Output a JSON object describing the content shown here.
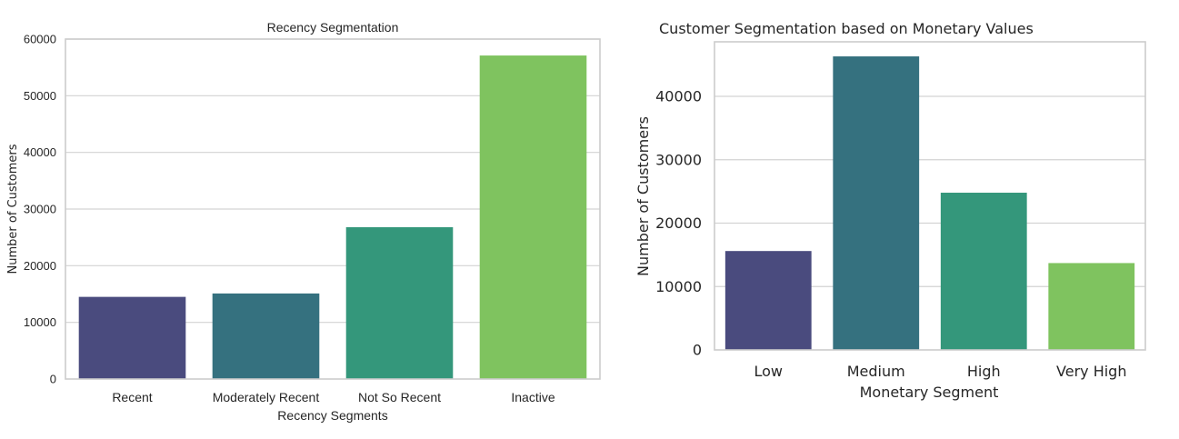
{
  "chart_data": [
    {
      "type": "bar",
      "title": "Recency Segmentation",
      "xlabel": "Recency Segments",
      "ylabel": "Number of Customers",
      "categories": [
        "Recent",
        "Moderately Recent",
        "Not So Recent",
        "Inactive"
      ],
      "values": [
        14500,
        15100,
        26800,
        57100
      ],
      "ylim": [
        0,
        60000
      ],
      "yticks": [
        0,
        10000,
        20000,
        30000,
        40000,
        50000,
        60000
      ],
      "colors": [
        "#4a4b7e",
        "#35717f",
        "#34977b",
        "#7fc35f"
      ],
      "grid": true
    },
    {
      "type": "bar",
      "title": "Customer Segmentation based on Monetary Values",
      "xlabel": "Monetary Segment",
      "ylabel": "Number of Customers",
      "categories": [
        "Low",
        "Medium",
        "High",
        "Very High"
      ],
      "values": [
        15600,
        46300,
        24800,
        13700
      ],
      "ylim": [
        0,
        48600
      ],
      "yticks": [
        0,
        10000,
        20000,
        30000,
        40000
      ],
      "colors": [
        "#4a4b7e",
        "#35717f",
        "#34977b",
        "#7fc35f"
      ],
      "grid": true
    }
  ]
}
